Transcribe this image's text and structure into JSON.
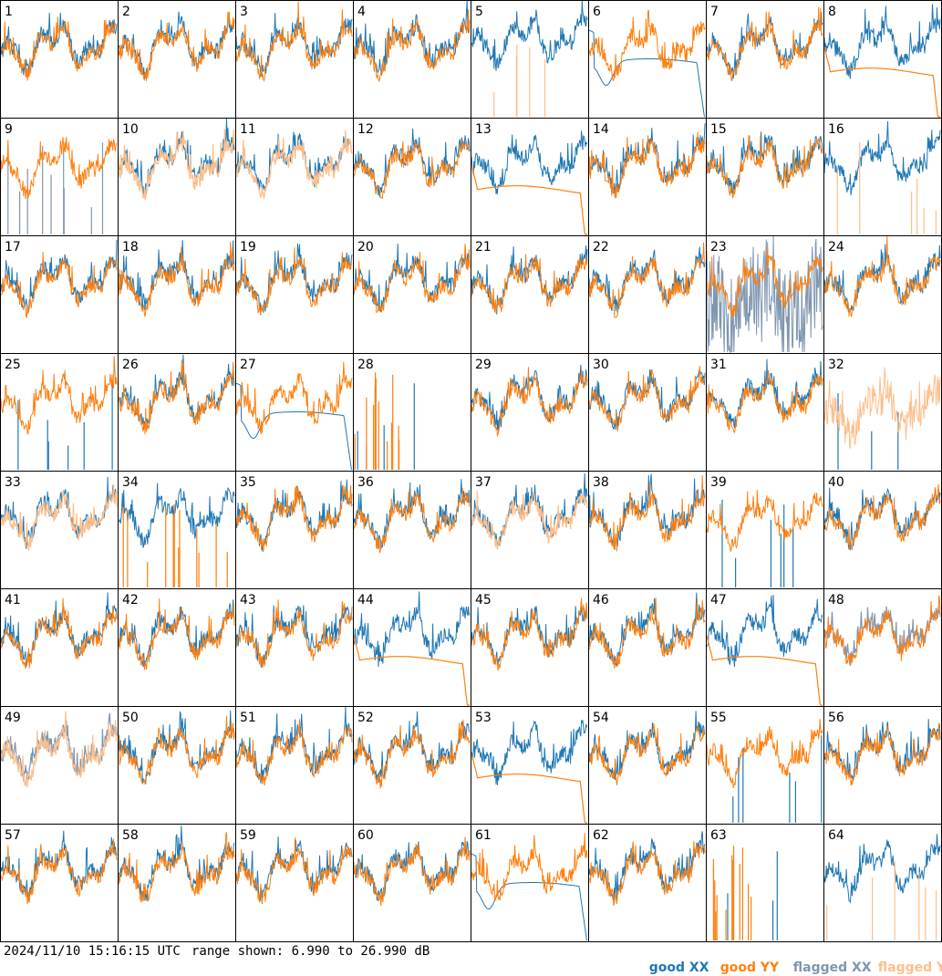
{
  "chart_data": {
    "type": "line",
    "panel_count": 64,
    "grid": {
      "columns": 8,
      "rows": 8
    },
    "panel_labels": [
      "1",
      "2",
      "3",
      "4",
      "5",
      "6",
      "7",
      "8",
      "9",
      "10",
      "11",
      "12",
      "13",
      "14",
      "15",
      "16",
      "17",
      "18",
      "19",
      "20",
      "21",
      "22",
      "23",
      "24",
      "25",
      "26",
      "27",
      "28",
      "29",
      "30",
      "31",
      "32",
      "33",
      "34",
      "35",
      "36",
      "37",
      "38",
      "39",
      "40",
      "41",
      "42",
      "43",
      "44",
      "45",
      "46",
      "47",
      "48",
      "49",
      "50",
      "51",
      "52",
      "53",
      "54",
      "55",
      "56",
      "57",
      "58",
      "59",
      "60",
      "61",
      "62",
      "63",
      "64"
    ],
    "range_db": [
      6.99,
      26.99
    ],
    "series": [
      {
        "name": "good XX",
        "color": "#1f77b4"
      },
      {
        "name": "good YY",
        "color": "#ff7f0e"
      },
      {
        "name": "flagged XX",
        "color": "#7f96b0"
      },
      {
        "name": "flagged YY",
        "color": "#ffbe8a"
      }
    ],
    "panel_status": {
      "5": "xx_good_yy_spikes",
      "6": "xx_smooth_dip",
      "8": "yy_smooth",
      "9": "xx_flagged_spikes",
      "10": "yy_flagged",
      "11": "yy_flagged",
      "13": "yy_smooth",
      "16": "xx_good_yy_flagged_spikes",
      "23": "xx_flagged_noisy",
      "25": "xx_spikes",
      "27": "xx_smooth_dip",
      "28": "mostly_empty_spikes",
      "32": "yy_flagged_main",
      "33": "yy_flagged",
      "34": "yy_spikes",
      "37": "yy_flagged",
      "39": "xx_spikes",
      "44": "yy_smooth",
      "47": "yy_smooth",
      "48": "xx_flagged",
      "49": "both_flagged",
      "53": "yy_smooth",
      "55": "xx_spikes",
      "61": "xx_smooth_dip",
      "63": "mostly_empty_spikes",
      "64": "xx_good_yy_flagged_spikes"
    }
  },
  "footer": {
    "timestamp": "2024/11/10 15:16:15 UTC",
    "range_text": "range shown: 6.990 to 26.990 dB"
  },
  "legend": [
    {
      "prefix": "good",
      "pol": "XX",
      "color": "#1f77b4"
    },
    {
      "prefix": "good",
      "pol": "YY",
      "color": "#ff7f0e"
    },
    {
      "prefix": "flagged",
      "pol": "XX",
      "color": "#7f96b0"
    },
    {
      "prefix": "flagged",
      "pol": "YY",
      "color": "#ffbe8a"
    }
  ]
}
